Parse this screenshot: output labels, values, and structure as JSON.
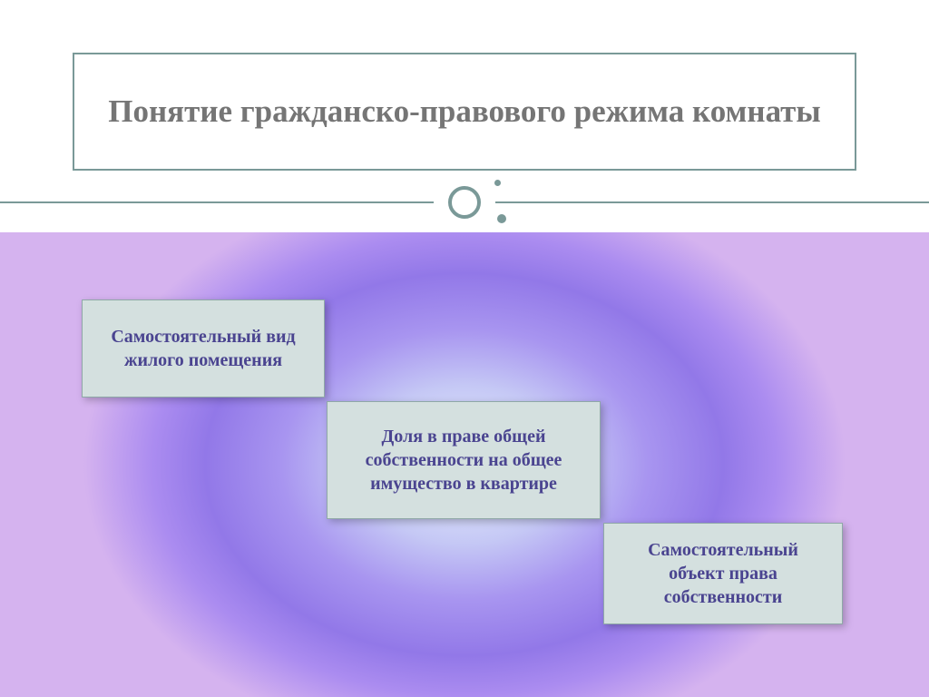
{
  "slide": {
    "title": "Понятие гражданско-правового режима комнаты",
    "title_color": "#757575",
    "title_fontsize": 35,
    "border_color": "#7a9998",
    "boxes": [
      {
        "text": "Самостоятельный вид жилого помещения",
        "position": "top-left"
      },
      {
        "text": "Доля в праве общей собственности на общее имущество в квартире",
        "position": "center"
      },
      {
        "text": "Самостоятельный объект права собственности",
        "position": "bottom-right"
      }
    ],
    "box_bg_color": "#d4e0df",
    "box_border_color": "#8fa8a7",
    "box_text_color": "#4a4490",
    "box_fontsize": 20,
    "gradient": {
      "type": "radial",
      "colors": [
        "#e8f0ff",
        "#c5c8f5",
        "#a895f0",
        "#9278e8",
        "#ab8cf0",
        "#d5b3ef"
      ]
    }
  }
}
